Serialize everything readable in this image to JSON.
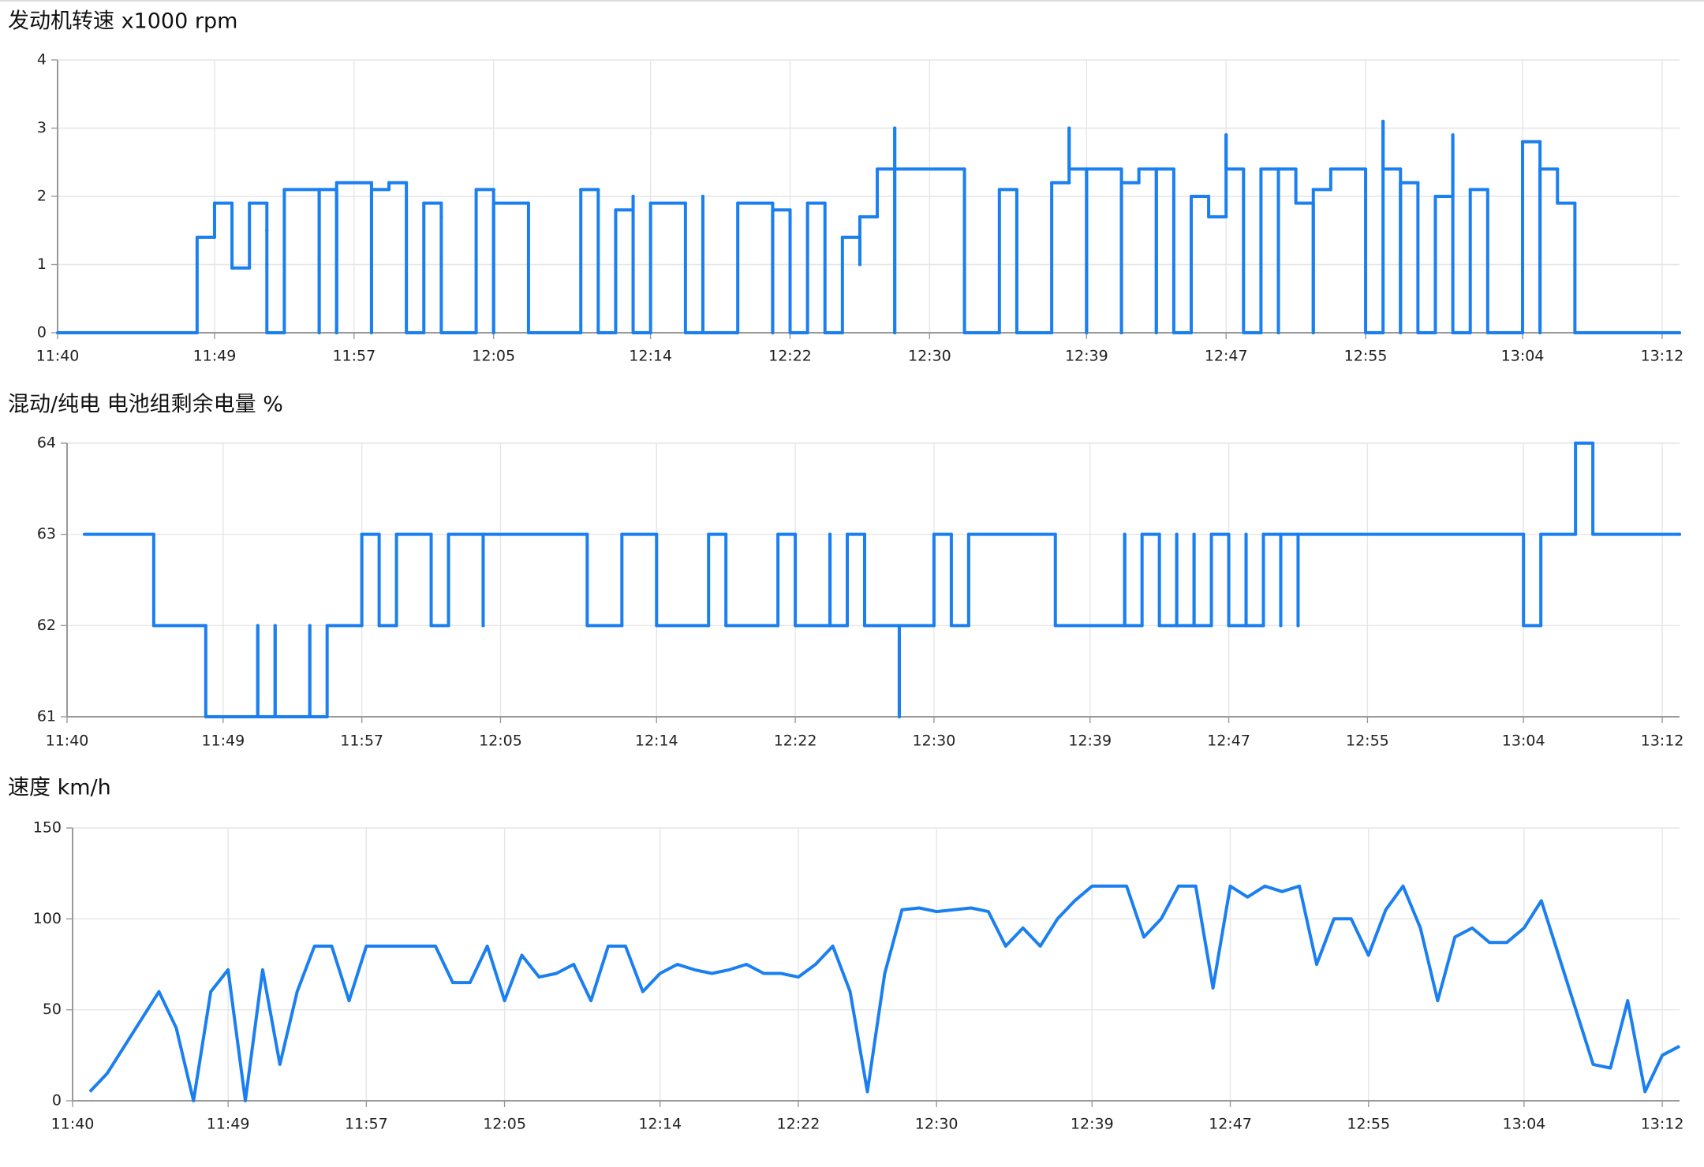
{
  "chart_data": [
    {
      "type": "line",
      "step": true,
      "title": "发动机转速 x1000  rpm",
      "color": "#1a7ff0",
      "grid": true,
      "xlim": [
        "11:40",
        "13:13"
      ],
      "xticks": [
        "11:40",
        "11:49",
        "11:57",
        "12:05",
        "12:14",
        "12:22",
        "12:30",
        "12:39",
        "12:47",
        "12:55",
        "13:04",
        "13:12"
      ],
      "ylim": [
        0,
        4
      ],
      "yticks": [
        0,
        1,
        2,
        3,
        4
      ],
      "x": [
        "11:40",
        "11:48",
        "11:49",
        "11:50",
        "11:51",
        "11:52",
        "11:52",
        "11:52",
        "11:53",
        "11:55",
        "11:55",
        "11:56",
        "11:56",
        "11:56",
        "11:58",
        "11:58",
        "11:59",
        "12:00",
        "12:01",
        "12:02",
        "12:02",
        "12:04",
        "12:05",
        "12:05",
        "12:07",
        "12:10",
        "12:11",
        "12:12",
        "12:13",
        "12:13",
        "12:14",
        "12:16",
        "12:17",
        "12:17",
        "12:19",
        "12:21",
        "12:21",
        "12:22",
        "12:23",
        "12:24",
        "12:25",
        "12:26",
        "12:26",
        "12:27",
        "12:28",
        "12:28",
        "12:28",
        "12:32",
        "12:34",
        "12:35",
        "12:37",
        "12:38",
        "12:38",
        "12:38",
        "12:39",
        "12:39",
        "12:41",
        "12:41",
        "12:42",
        "12:43",
        "12:43",
        "12:44",
        "12:45",
        "12:46",
        "12:47",
        "12:47",
        "12:48",
        "12:49",
        "12:50",
        "12:50",
        "12:51",
        "12:52",
        "12:52",
        "12:53",
        "12:55",
        "12:56",
        "12:56",
        "12:56",
        "12:57",
        "12:57",
        "12:58",
        "12:59",
        "13:00",
        "13:00",
        "13:01",
        "13:02",
        "13:04",
        "13:04",
        "13:05",
        "13:05",
        "13:06",
        "13:07",
        "13:07",
        "13:13"
      ],
      "values": [
        0,
        1.4,
        1.9,
        0.95,
        1.9,
        1.5,
        1.0,
        0,
        2.1,
        0,
        2.1,
        1.9,
        0,
        2.2,
        0,
        2.1,
        2.2,
        0,
        1.9,
        1.7,
        0,
        2.1,
        0,
        1.9,
        0,
        2.1,
        0,
        1.8,
        2.0,
        0,
        1.9,
        0,
        2.0,
        0,
        1.9,
        0,
        1.8,
        0,
        1.9,
        0,
        1.4,
        1.0,
        1.7,
        2.4,
        3.0,
        0,
        2.4,
        0,
        2.1,
        0,
        2.2,
        2.4,
        3.0,
        2.4,
        0,
        2.4,
        0,
        2.2,
        2.4,
        0,
        2.4,
        0,
        2.0,
        1.7,
        2.9,
        2.4,
        0,
        2.4,
        0,
        2.4,
        1.9,
        0,
        2.1,
        2.4,
        0,
        2.4,
        3.1,
        2.4,
        0,
        2.2,
        0,
        2.0,
        2.9,
        0,
        2.1,
        0,
        2.4,
        2.8,
        0,
        2.4,
        1.9,
        1.0,
        0,
        0
      ]
    },
    {
      "type": "line",
      "step": true,
      "title": "混动/纯电 电池组剩余电量  %",
      "color": "#1a7ff0",
      "grid": true,
      "xlim": [
        "11:40",
        "13:13"
      ],
      "xticks": [
        "11:40",
        "11:49",
        "11:57",
        "12:05",
        "12:14",
        "12:22",
        "12:30",
        "12:39",
        "12:47",
        "12:55",
        "13:04",
        "13:12"
      ],
      "ylim": [
        61,
        64
      ],
      "yticks": [
        61,
        62,
        63,
        64
      ],
      "x": [
        "11:41",
        "11:45",
        "11:48",
        "11:51",
        "11:51",
        "11:52",
        "11:52",
        "11:54",
        "11:54",
        "11:55",
        "11:57",
        "11:58",
        "11:59",
        "12:01",
        "12:02",
        "12:04",
        "12:04",
        "12:04",
        "12:04",
        "12:10",
        "12:12",
        "12:14",
        "12:17",
        "12:18",
        "12:21",
        "12:22",
        "12:24",
        "12:24",
        "12:24",
        "12:24",
        "12:25",
        "12:26",
        "12:28",
        "12:28",
        "12:30",
        "12:31",
        "12:32",
        "12:37",
        "12:41",
        "12:41",
        "12:42",
        "12:43",
        "12:44",
        "12:44",
        "12:45",
        "12:45",
        "12:46",
        "12:47",
        "12:48",
        "12:48",
        "12:49",
        "12:50",
        "12:50",
        "12:51",
        "12:51",
        "13:04",
        "13:05",
        "13:07",
        "13:08",
        "13:13"
      ],
      "values": [
        63,
        62,
        61,
        62,
        61,
        62,
        61,
        62,
        61,
        62,
        63,
        62,
        63,
        62,
        63,
        62,
        63,
        62,
        63,
        62,
        63,
        62,
        63,
        62,
        63,
        62,
        63,
        62,
        63,
        62,
        63,
        62,
        61,
        62,
        63,
        62,
        63,
        62,
        63,
        62,
        63,
        62,
        63,
        62,
        63,
        62,
        63,
        62,
        63,
        62,
        63,
        62,
        63,
        62,
        63,
        62,
        63,
        64,
        63,
        63
      ]
    },
    {
      "type": "line",
      "step": false,
      "title": "速度  km/h",
      "color": "#1a7ff0",
      "grid": true,
      "xlim": [
        "11:40",
        "13:13"
      ],
      "xticks": [
        "11:40",
        "11:49",
        "11:57",
        "12:05",
        "12:14",
        "12:22",
        "12:30",
        "12:39",
        "12:47",
        "12:55",
        "13:04",
        "13:12"
      ],
      "ylim": [
        0,
        150
      ],
      "yticks": [
        0,
        50,
        100,
        150
      ],
      "x": [
        "11:41",
        "11:42",
        "11:43",
        "11:44",
        "11:45",
        "11:46",
        "11:47",
        "11:48",
        "11:49",
        "11:50",
        "11:51",
        "11:52",
        "11:53",
        "11:54",
        "11:55",
        "11:56",
        "11:57",
        "11:58",
        "11:59",
        "12:00",
        "12:01",
        "12:02",
        "12:03",
        "12:04",
        "12:05",
        "12:06",
        "12:07",
        "12:08",
        "12:09",
        "12:10",
        "12:11",
        "12:12",
        "12:13",
        "12:14",
        "12:15",
        "12:16",
        "12:17",
        "12:18",
        "12:19",
        "12:20",
        "12:21",
        "12:22",
        "12:23",
        "12:24",
        "12:25",
        "12:26",
        "12:27",
        "12:28",
        "12:29",
        "12:30",
        "12:31",
        "12:32",
        "12:33",
        "12:34",
        "12:35",
        "12:36",
        "12:37",
        "12:38",
        "12:39",
        "12:40",
        "12:41",
        "12:42",
        "12:43",
        "12:44",
        "12:45",
        "12:46",
        "12:47",
        "12:48",
        "12:49",
        "12:50",
        "12:51",
        "12:52",
        "12:53",
        "12:54",
        "12:55",
        "12:56",
        "12:57",
        "12:58",
        "12:59",
        "13:00",
        "13:01",
        "13:02",
        "13:03",
        "13:04",
        "13:05",
        "13:06",
        "13:07",
        "13:08",
        "13:09",
        "13:10",
        "13:11",
        "13:12",
        "13:13"
      ],
      "values": [
        5,
        15,
        30,
        45,
        60,
        40,
        0,
        60,
        72,
        0,
        72,
        20,
        60,
        85,
        85,
        55,
        85,
        85,
        85,
        85,
        85,
        65,
        65,
        85,
        55,
        80,
        68,
        70,
        75,
        55,
        85,
        85,
        60,
        70,
        75,
        72,
        70,
        72,
        75,
        70,
        70,
        68,
        75,
        85,
        60,
        5,
        70,
        105,
        106,
        104,
        105,
        106,
        104,
        85,
        95,
        85,
        100,
        110,
        118,
        118,
        118,
        90,
        100,
        118,
        118,
        62,
        118,
        112,
        118,
        115,
        118,
        75,
        100,
        100,
        80,
        105,
        118,
        95,
        55,
        90,
        95,
        87,
        87,
        95,
        110,
        80,
        50,
        20,
        18,
        55,
        5,
        25,
        30
      ]
    }
  ]
}
